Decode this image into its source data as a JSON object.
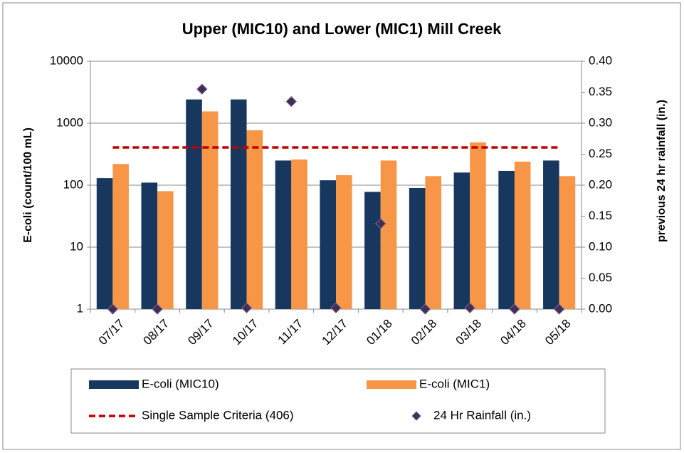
{
  "chart_data": {
    "type": "bar",
    "title": "Upper (MIC10) and Lower (MIC1) Mill Creek",
    "y_label": "E-coli (count/100 mL)",
    "y2_label": "previous 24 hr rainfall (in.)",
    "categories": [
      "07/17",
      "08/17",
      "09/17",
      "10/17",
      "11/17",
      "12/17",
      "01/18",
      "02/18",
      "03/18",
      "04/18",
      "05/18"
    ],
    "log_y": true,
    "ylim": [
      1,
      10000
    ],
    "yticks": [
      1,
      10,
      100,
      1000,
      10000
    ],
    "y2lim": [
      0,
      0.4
    ],
    "y2ticks": [
      {
        "value": 0,
        "label": "0.00"
      },
      {
        "value": 0.05,
        "label": "0.05"
      },
      {
        "value": 0.1,
        "label": "0.10"
      },
      {
        "value": 0.15,
        "label": "0.15"
      },
      {
        "value": 0.2,
        "label": "0.20"
      },
      {
        "value": 0.25,
        "label": "0.25"
      },
      {
        "value": 0.3,
        "label": "0.30"
      },
      {
        "value": 0.35,
        "label": "0.35"
      },
      {
        "value": 0.4,
        "label": "0.40"
      }
    ],
    "grid": true,
    "legend": "bottom",
    "series": [
      {
        "name": "E-coli (MIC10)",
        "type": "bar",
        "color": "#17375e",
        "values": [
          130,
          110,
          2420,
          2420,
          250,
          120,
          78,
          90,
          160,
          170,
          250
        ]
      },
      {
        "name": "E-coli (MIC1)",
        "type": "bar",
        "color": "#f79646",
        "values": [
          220,
          80,
          1550,
          770,
          260,
          145,
          250,
          140,
          490,
          240,
          140
        ]
      },
      {
        "name": "Single Sample Criteria (406)",
        "type": "line",
        "color": "#c00000",
        "values": [
          406,
          406,
          406,
          406,
          406,
          406,
          406,
          406,
          406,
          406,
          406
        ]
      },
      {
        "name": "24 Hr Rainfall (in.)",
        "type": "scatter",
        "axis": "y2",
        "color": "#403152",
        "values": [
          0,
          0,
          0.355,
          0.002,
          0.335,
          0.002,
          0.138,
          0,
          0.002,
          0,
          0
        ]
      }
    ]
  }
}
